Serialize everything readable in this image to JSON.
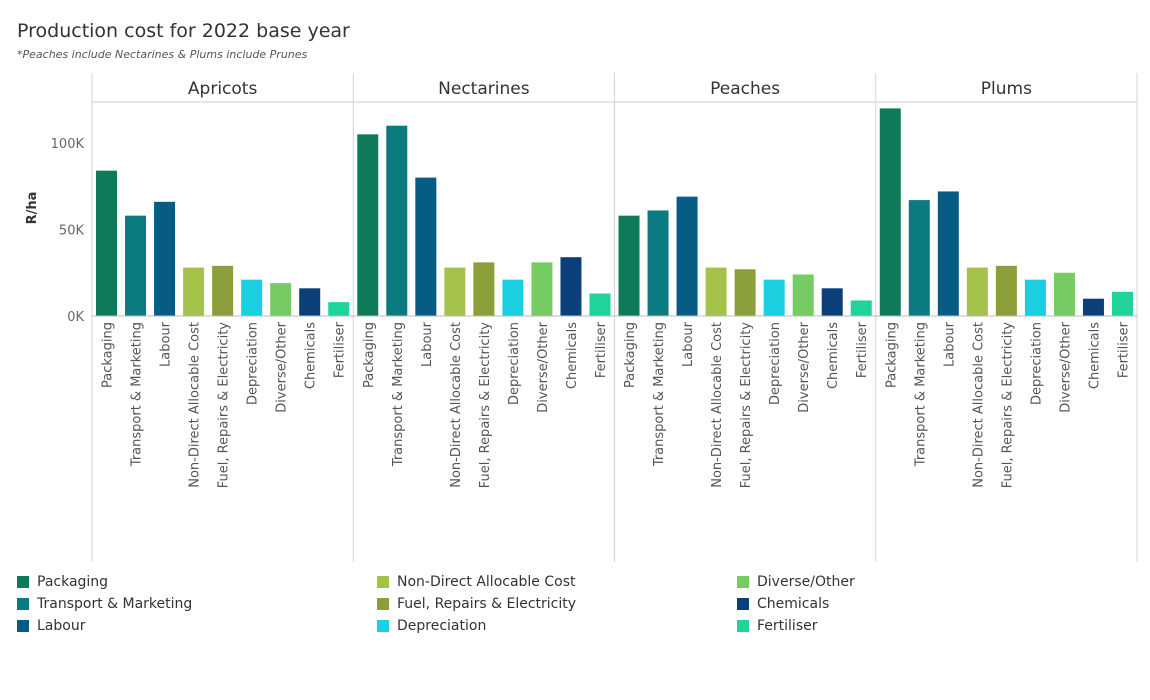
{
  "title": "Production cost for 2022 base year",
  "subtitle": "*Peaches include Nectarines & Plums include Prunes",
  "chart_data": {
    "type": "bar",
    "ylabel": "R/ha",
    "ylim": [
      0,
      125000
    ],
    "yticks": [
      {
        "value": 0,
        "label": "0K"
      },
      {
        "value": 50000,
        "label": "50K"
      },
      {
        "value": 100000,
        "label": "100K"
      }
    ],
    "categories": [
      "Packaging",
      "Transport & Marketing",
      "Labour",
      "Non-Direct Allocable Cost",
      "Fuel, Repairs & Electricity",
      "Depreciation",
      "Diverse/Other",
      "Chemicals",
      "Fertiliser"
    ],
    "colors": [
      "#0f7a5a",
      "#0b7b82",
      "#065c84",
      "#a4c24a",
      "#8a9f3a",
      "#19cfe0",
      "#76cc62",
      "#0b3f7a",
      "#1fd39a"
    ],
    "panels": [
      {
        "name": "Apricots",
        "values": [
          84000,
          58000,
          66000,
          28000,
          29000,
          21000,
          19000,
          16000,
          8000
        ]
      },
      {
        "name": "Nectarines",
        "values": [
          105000,
          110000,
          80000,
          28000,
          31000,
          21000,
          31000,
          34000,
          13000
        ]
      },
      {
        "name": "Peaches",
        "values": [
          58000,
          61000,
          69000,
          28000,
          27000,
          21000,
          24000,
          16000,
          9000
        ]
      },
      {
        "name": "Plums",
        "values": [
          120000,
          67000,
          72000,
          28000,
          29000,
          21000,
          25000,
          10000,
          14000
        ]
      }
    ]
  }
}
